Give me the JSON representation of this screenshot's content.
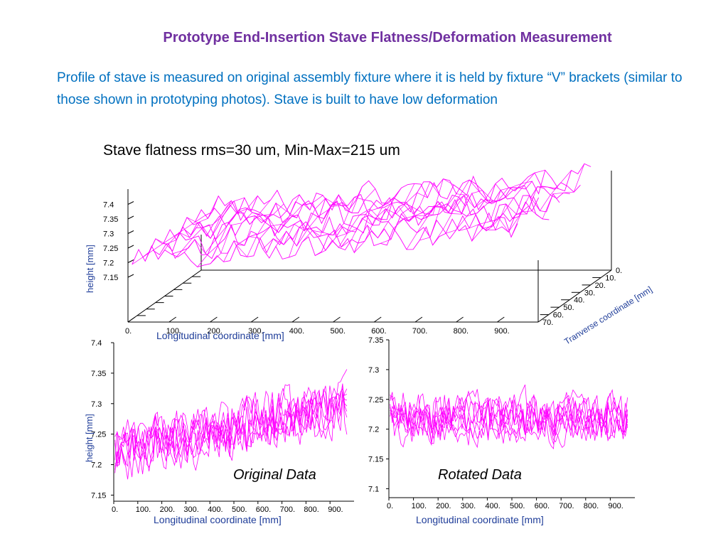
{
  "slide": {
    "title": "Prototype End-Insertion Stave Flatness/Deformation Measurement",
    "body": "Profile of stave is measured on original assembly fixture where it is held by fixture “V” brackets (similar to those shown in prototyping photos). Stave is built to have low deformation"
  },
  "colors": {
    "title": "#7030a0",
    "body": "#0070c0",
    "trace": "#ff00ff",
    "axis_label": "#1f3d99"
  },
  "chart_data": [
    {
      "type": "surface",
      "title": "Stave flatness rms=30 um, Min-Max=215 um",
      "xlabel": "Longitudinal coordinate [mm]",
      "ylabel": "Tranverse coordinate [mm]",
      "zlabel": "height [mm]",
      "x_ticks": [
        "0.",
        "100.",
        "200.",
        "300.",
        "400.",
        "500.",
        "600.",
        "700.",
        "800.",
        "900."
      ],
      "y_ticks": [
        "0.",
        "10.",
        "20.",
        "30.",
        "40.",
        "50.",
        "60.",
        "70."
      ],
      "z_ticks": [
        "7.15",
        "7.2",
        "7.25",
        "7.3",
        "7.35",
        "7.4"
      ],
      "xlim": [
        0,
        1000
      ],
      "ylim": [
        0,
        70
      ],
      "zlim": [
        7.15,
        7.4
      ],
      "num_traces": 8,
      "z_trend": {
        "start": 7.23,
        "end": 7.31,
        "noise": 0.05
      }
    },
    {
      "type": "line",
      "caption": "Original Data",
      "xlabel": "Longitudinal coordinate [mm]",
      "ylabel": "height [mm]",
      "x_ticks": [
        "0.",
        "100.",
        "200.",
        "300.",
        "400.",
        "500.",
        "600.",
        "700.",
        "800.",
        "900."
      ],
      "y_ticks": [
        "7.15",
        "7.2",
        "7.25",
        "7.3",
        "7.35",
        "7.4"
      ],
      "xlim": [
        0,
        1000
      ],
      "ylim": [
        7.14,
        7.4
      ],
      "num_traces": 8,
      "trend": {
        "start": 7.22,
        "end": 7.3,
        "noise": 0.05
      }
    },
    {
      "type": "line",
      "caption": "Rotated Data",
      "xlabel": "Longitudinal coordinate [mm]",
      "ylabel": "",
      "x_ticks": [
        "0.",
        "100.",
        "200.",
        "300.",
        "400.",
        "500.",
        "600.",
        "700.",
        "800.",
        "900."
      ],
      "y_ticks": [
        "7.1",
        "7.15",
        "7.2",
        "7.25",
        "7.3",
        "7.35"
      ],
      "xlim": [
        0,
        1000
      ],
      "ylim": [
        7.085,
        7.35
      ],
      "num_traces": 8,
      "trend": {
        "start": 7.22,
        "end": 7.22,
        "noise": 0.045
      }
    }
  ]
}
